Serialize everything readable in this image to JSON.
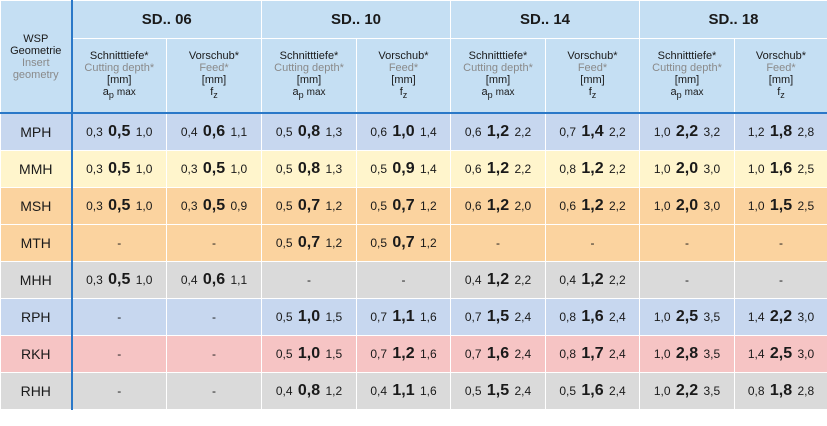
{
  "header": {
    "corner": {
      "de": "WSP",
      "de2": "Geometrie",
      "en": "Insert",
      "en2": "geometry"
    },
    "groups": [
      "SD.. 06",
      "SD.. 10",
      "SD.. 14",
      "SD.. 18"
    ],
    "cutting": {
      "de": "Schnitttiefe*",
      "en": "Cutting depth*",
      "unit": "[mm]",
      "sym": "a",
      "sub": "p",
      "suffix": "max"
    },
    "feed": {
      "de": "Vorschub*",
      "en": "Feed*",
      "unit": "[mm]",
      "sym": "f",
      "sub": "z"
    }
  },
  "colors": {
    "blue": "#c7d7ef",
    "yellow": "#fff5cc",
    "orange": "#fbd39f",
    "grey": "#dadada",
    "pink": "#f6c4c4"
  },
  "rows": [
    {
      "label": "MPH",
      "color": "blue",
      "cells": [
        {
          "min": "0,3",
          "val": "0,5",
          "max": "1,0"
        },
        {
          "min": "0,4",
          "val": "0,6",
          "max": "1,1"
        },
        {
          "min": "0,5",
          "val": "0,8",
          "max": "1,3"
        },
        {
          "min": "0,6",
          "val": "1,0",
          "max": "1,4"
        },
        {
          "min": "0,6",
          "val": "1,2",
          "max": "2,2"
        },
        {
          "min": "0,7",
          "val": "1,4",
          "max": "2,2"
        },
        {
          "min": "1,0",
          "val": "2,2",
          "max": "3,2"
        },
        {
          "min": "1,2",
          "val": "1,8",
          "max": "2,8"
        }
      ]
    },
    {
      "label": "MMH",
      "color": "yellow",
      "cells": [
        {
          "min": "0,3",
          "val": "0,5",
          "max": "1,0"
        },
        {
          "min": "0,3",
          "val": "0,5",
          "max": "1,0"
        },
        {
          "min": "0,5",
          "val": "0,8",
          "max": "1,3"
        },
        {
          "min": "0,5",
          "val": "0,9",
          "max": "1,4"
        },
        {
          "min": "0,6",
          "val": "1,2",
          "max": "2,2"
        },
        {
          "min": "0,8",
          "val": "1,2",
          "max": "2,2"
        },
        {
          "min": "1,0",
          "val": "2,0",
          "max": "3,0"
        },
        {
          "min": "1,0",
          "val": "1,6",
          "max": "2,5"
        }
      ]
    },
    {
      "label": "MSH",
      "color": "orange",
      "cells": [
        {
          "min": "0,3",
          "val": "0,5",
          "max": "1,0"
        },
        {
          "min": "0,3",
          "val": "0,5",
          "max": "0,9"
        },
        {
          "min": "0,5",
          "val": "0,7",
          "max": "1,2"
        },
        {
          "min": "0,5",
          "val": "0,7",
          "max": "1,2"
        },
        {
          "min": "0,6",
          "val": "1,2",
          "max": "2,0"
        },
        {
          "min": "0,6",
          "val": "1,2",
          "max": "2,2"
        },
        {
          "min": "1,0",
          "val": "2,0",
          "max": "3,0"
        },
        {
          "min": "1,0",
          "val": "1,5",
          "max": "2,5"
        }
      ]
    },
    {
      "label": "MTH",
      "color": "orange",
      "cells": [
        {
          "dash": "-"
        },
        {
          "dash": "-"
        },
        {
          "min": "0,5",
          "val": "0,7",
          "max": "1,2"
        },
        {
          "min": "0,5",
          "val": "0,7",
          "max": "1,2"
        },
        {
          "dash": "-"
        },
        {
          "dash": "-"
        },
        {
          "dash": "-"
        },
        {
          "dash": "-"
        }
      ]
    },
    {
      "label": "MHH",
      "color": "grey",
      "cells": [
        {
          "min": "0,3",
          "val": "0,5",
          "max": "1,0"
        },
        {
          "min": "0,4",
          "val": "0,6",
          "max": "1,1"
        },
        {
          "dash": "-"
        },
        {
          "dash": "-"
        },
        {
          "min": "0,4",
          "val": "1,2",
          "max": "2,2"
        },
        {
          "min": "0,4",
          "val": "1,2",
          "max": "2,2"
        },
        {
          "dash": "-"
        },
        {
          "dash": "-"
        }
      ]
    },
    {
      "label": "RPH",
      "color": "blue",
      "cells": [
        {
          "dash": "-"
        },
        {
          "dash": "-"
        },
        {
          "min": "0,5",
          "val": "1,0",
          "max": "1,5"
        },
        {
          "min": "0,7",
          "val": "1,1",
          "max": "1,6"
        },
        {
          "min": "0,7",
          "val": "1,5",
          "max": "2,4"
        },
        {
          "min": "0,8",
          "val": "1,6",
          "max": "2,4"
        },
        {
          "min": "1,0",
          "val": "2,5",
          "max": "3,5"
        },
        {
          "min": "1,4",
          "val": "2,2",
          "max": "3,0"
        }
      ]
    },
    {
      "label": "RKH",
      "color": "pink",
      "cells": [
        {
          "dash": "-"
        },
        {
          "dash": "-"
        },
        {
          "min": "0,5",
          "val": "1,0",
          "max": "1,5"
        },
        {
          "min": "0,7",
          "val": "1,2",
          "max": "1,6"
        },
        {
          "min": "0,7",
          "val": "1,6",
          "max": "2,4"
        },
        {
          "min": "0,8",
          "val": "1,7",
          "max": "2,4"
        },
        {
          "min": "1,0",
          "val": "2,8",
          "max": "3,5"
        },
        {
          "min": "1,4",
          "val": "2,5",
          "max": "3,0"
        }
      ]
    },
    {
      "label": "RHH",
      "color": "grey",
      "cells": [
        {
          "dash": "-"
        },
        {
          "dash": "-"
        },
        {
          "min": "0,4",
          "val": "0,8",
          "max": "1,2"
        },
        {
          "min": "0,4",
          "val": "1,1",
          "max": "1,6"
        },
        {
          "min": "0,5",
          "val": "1,5",
          "max": "2,4"
        },
        {
          "min": "0,5",
          "val": "1,6",
          "max": "2,4"
        },
        {
          "min": "1,0",
          "val": "2,2",
          "max": "3,5"
        },
        {
          "min": "0,8",
          "val": "1,8",
          "max": "2,8"
        }
      ]
    }
  ]
}
